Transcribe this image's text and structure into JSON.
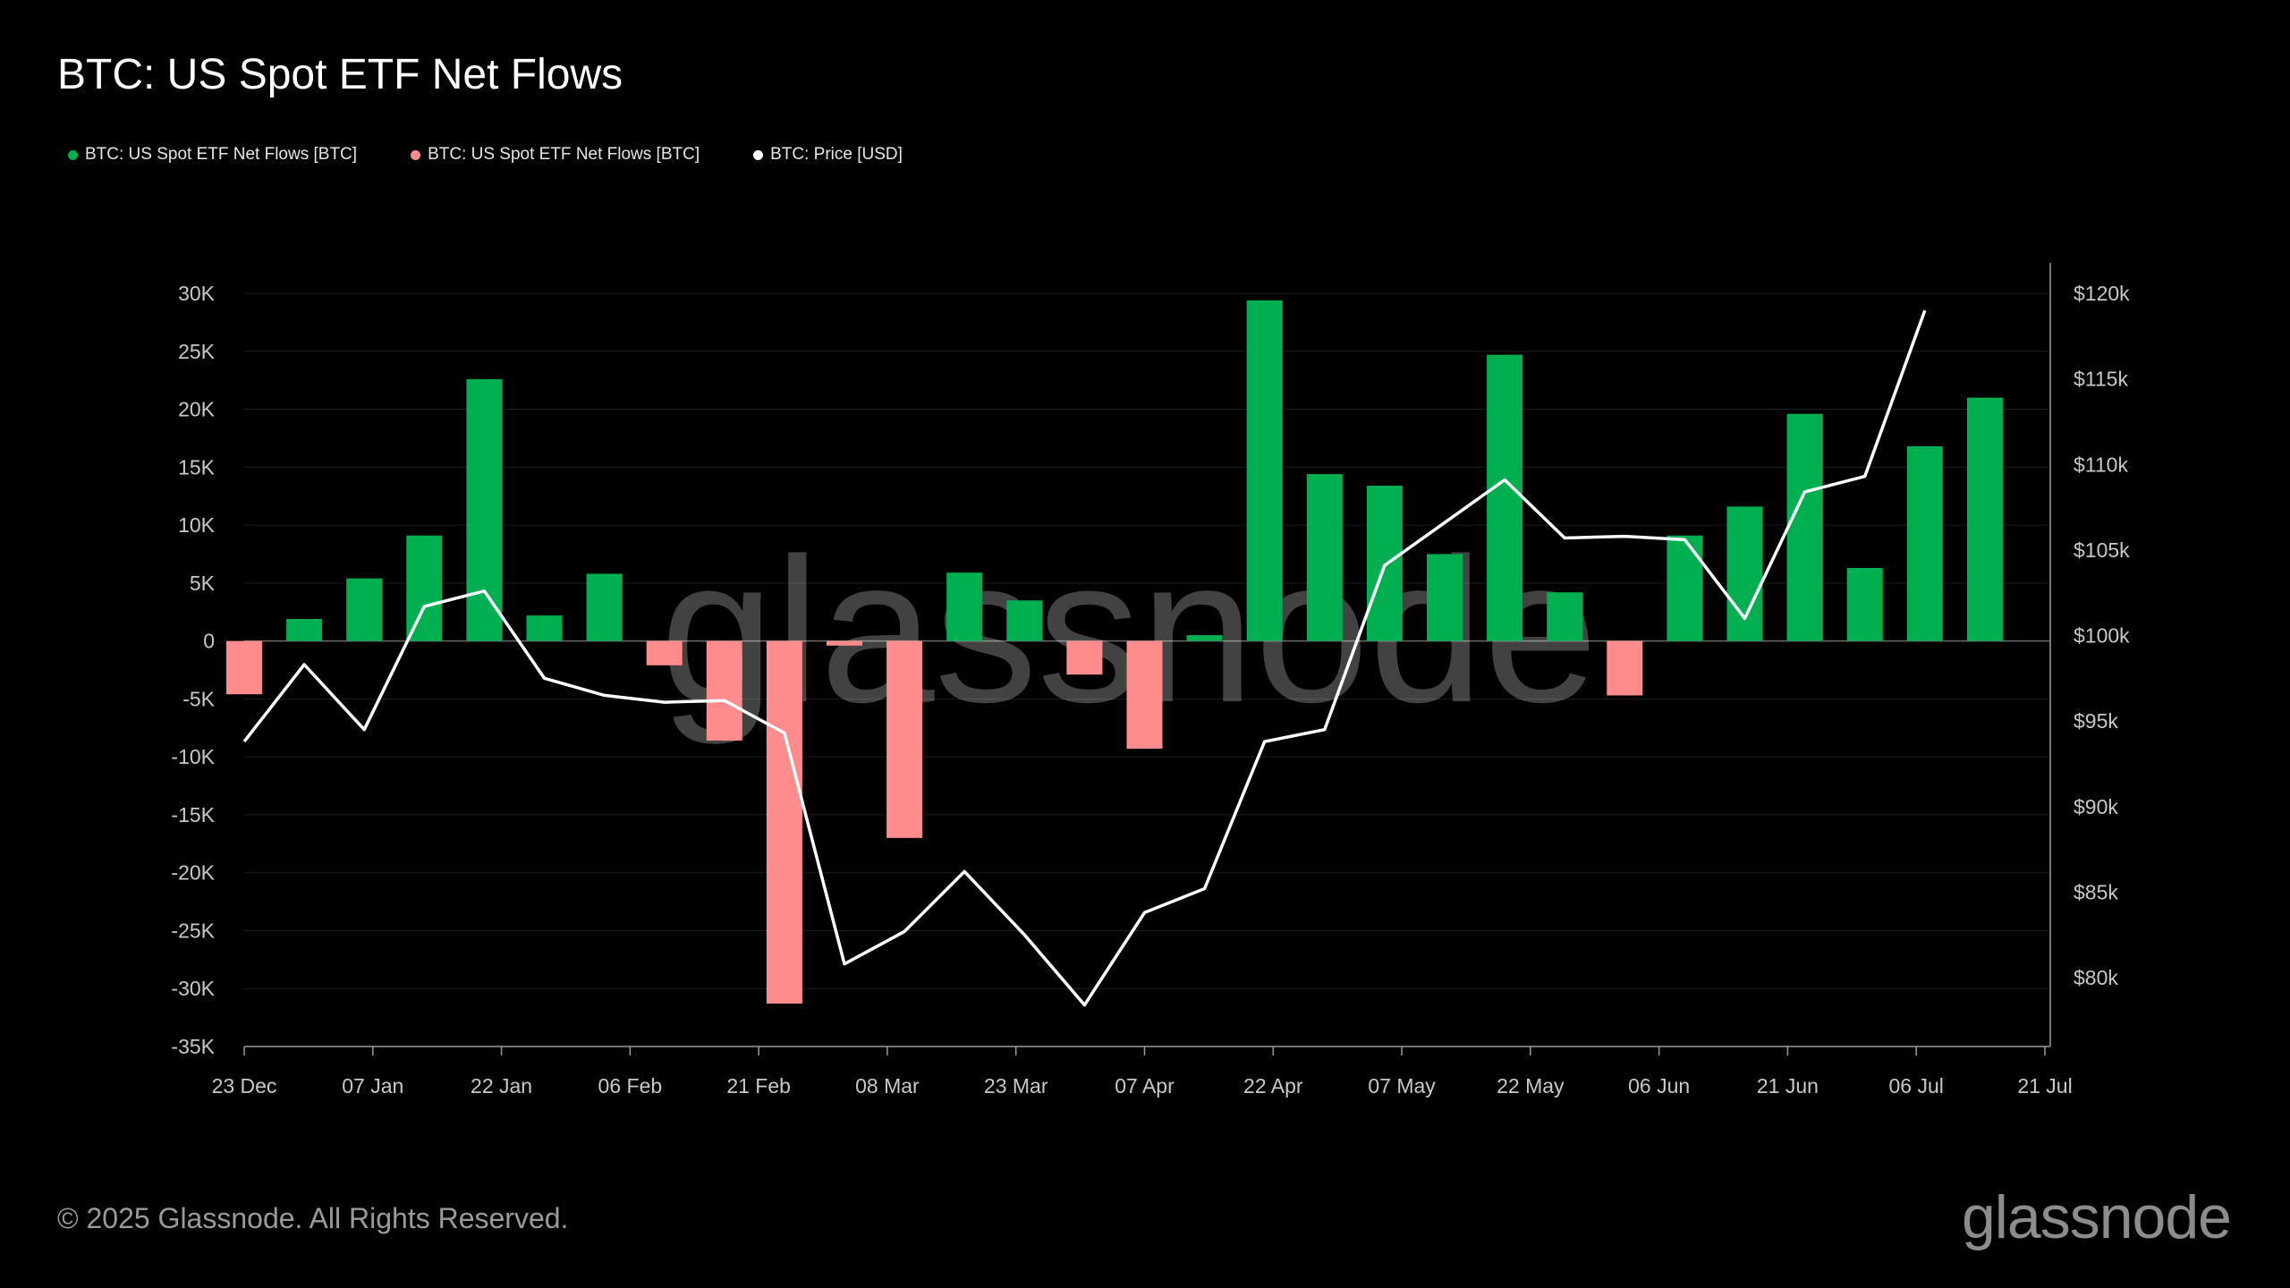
{
  "chart_data": {
    "type": "bar",
    "title": "BTC: US Spot ETF Net Flows",
    "legend": [
      {
        "label": "BTC: US Spot ETF Net Flows [BTC]",
        "color": "#00b050"
      },
      {
        "label": "BTC: US Spot ETF Net Flows [BTC]",
        "color": "#ff8c8c"
      },
      {
        "label": "BTC: Price [USD]",
        "color": "#ffffff"
      }
    ],
    "x_ticks": [
      "23 Dec",
      "07 Jan",
      "22 Jan",
      "06 Feb",
      "21 Feb",
      "08 Mar",
      "23 Mar",
      "07 Apr",
      "22 Apr",
      "07 May",
      "22 May",
      "06 Jun",
      "21 Jun",
      "06 Jul",
      "21 Jul"
    ],
    "y_left_ticks": [
      "30K",
      "25K",
      "20K",
      "15K",
      "10K",
      "5K",
      "0",
      "-5K",
      "-10K",
      "-15K",
      "-20K",
      "-25K",
      "-30K",
      "-35K"
    ],
    "y_left_values": [
      30000,
      25000,
      20000,
      15000,
      10000,
      5000,
      0,
      -5000,
      -10000,
      -15000,
      -20000,
      -25000,
      -30000,
      -35000
    ],
    "y_right_ticks": [
      "$120k",
      "$115k",
      "$110k",
      "$105k",
      "$100k",
      "$95k",
      "$90k",
      "$85k",
      "$80k"
    ],
    "y_right_values": [
      120000,
      115000,
      110000,
      105000,
      100000,
      95000,
      90000,
      85000,
      80000
    ],
    "ylim_left": [
      -35000,
      30000
    ],
    "x_range_days": [
      0,
      210
    ],
    "series": [
      {
        "name": "BTC: US Spot ETF Net Flows [BTC]",
        "type": "bar",
        "positive_color": "#00b050",
        "negative_color": "#ff8c8c",
        "x_days": [
          0,
          7,
          14,
          21,
          28,
          35,
          42,
          49,
          56,
          63,
          70,
          77,
          84,
          91,
          98,
          105,
          112,
          119,
          126,
          133,
          140,
          147,
          154,
          161,
          168,
          175,
          182,
          189,
          196,
          203
        ],
        "values": [
          -4600,
          1900,
          5400,
          9100,
          22600,
          2200,
          5800,
          -2100,
          -8600,
          -31300,
          -400,
          -17000,
          5900,
          3500,
          -2900,
          -9300,
          500,
          29400,
          14400,
          13400,
          7500,
          24700,
          4200,
          -4700,
          9100,
          11600,
          19600,
          6300,
          16800,
          21000
        ]
      },
      {
        "name": "BTC: Price [USD]",
        "type": "line",
        "color": "#ffffff",
        "x_days": [
          0,
          7,
          14,
          21,
          28,
          35,
          42,
          49,
          56,
          63,
          70,
          77,
          84,
          91,
          98,
          105,
          112,
          119,
          126,
          133,
          140,
          147,
          154,
          161,
          168,
          175,
          182,
          189,
          196
        ],
        "values": [
          93800,
          98300,
          94500,
          101700,
          102600,
          97500,
          96500,
          96100,
          96200,
          94300,
          80800,
          82700,
          86200,
          82500,
          78400,
          83800,
          85200,
          93800,
          94500,
          104100,
          106600,
          109100,
          105700,
          105800,
          105600,
          101000,
          108400,
          109300,
          119000
        ]
      }
    ],
    "watermark": "glassnode"
  },
  "footer": {
    "copyright": "© 2025 Glassnode. All Rights Reserved.",
    "logo": "glassnode"
  }
}
